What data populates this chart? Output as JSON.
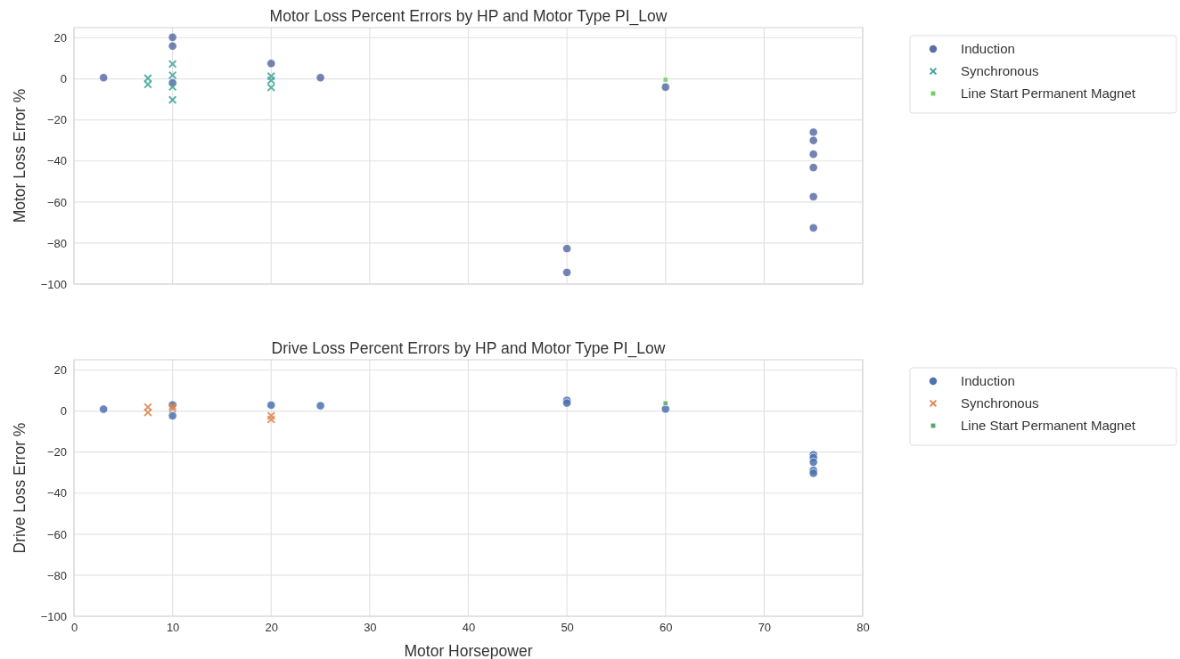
{
  "chart_data": [
    {
      "type": "scatter",
      "title": "Motor Loss Percent Errors by HP and Motor Type PI_Low",
      "ylabel": "Motor Loss Error %",
      "xlim": [
        0,
        80
      ],
      "xticks": [
        0,
        10,
        20,
        30,
        40,
        50,
        60,
        70,
        80
      ],
      "ylim": [
        -100,
        25
      ],
      "yticks": [
        -100,
        -80,
        -60,
        -40,
        -20,
        0,
        20
      ],
      "tick_labels": "y",
      "grid": true,
      "legend": "right",
      "series": [
        {
          "name": "Induction",
          "color": "#5b6ea6",
          "marker": "circle",
          "x": [
            3,
            10,
            10,
            10,
            20,
            25,
            50,
            50,
            60,
            75,
            75,
            75,
            75,
            75,
            75
          ],
          "values": [
            0.6,
            20.3,
            16,
            -1.9,
            7.5,
            0.6,
            -82.7,
            -94.3,
            -4,
            -26,
            -30,
            -36.7,
            -43.2,
            -57.4,
            -72.6
          ]
        },
        {
          "name": "Synchronous",
          "color": "#3fa39b",
          "marker": "cross",
          "x": [
            7.5,
            7.5,
            10,
            10,
            10,
            10,
            20,
            20,
            20
          ],
          "values": [
            0.3,
            -2.7,
            7.3,
            1.8,
            -3.9,
            -10.2,
            1.3,
            -0.7,
            -4.2
          ]
        },
        {
          "name": "Line Start Permanent Magnet",
          "color": "#6fce64",
          "marker": "square",
          "x": [
            60
          ],
          "values": [
            -0.4
          ]
        }
      ]
    },
    {
      "type": "scatter",
      "title": "Drive Loss Percent Errors by HP and Motor Type PI_Low",
      "xlabel": "Motor Horsepower",
      "ylabel": "Drive Loss Error %",
      "xlim": [
        0,
        80
      ],
      "xticks": [
        0,
        10,
        20,
        30,
        40,
        50,
        60,
        70,
        80
      ],
      "ylim": [
        -100,
        25
      ],
      "yticks": [
        -100,
        -80,
        -60,
        -40,
        -20,
        0,
        20
      ],
      "grid": true,
      "legend": "right",
      "series": [
        {
          "name": "Induction",
          "color": "#4c72b0",
          "marker": "circle",
          "x": [
            3,
            10,
            10,
            20,
            25,
            50,
            50,
            60,
            75,
            75,
            75,
            75,
            75
          ],
          "values": [
            0.9,
            3,
            -2.3,
            2.9,
            2.6,
            5.2,
            3.9,
            1,
            -21.3,
            -22.7,
            -24.9,
            -28.9,
            -30.3
          ]
        },
        {
          "name": "Synchronous",
          "color": "#dd8452",
          "marker": "cross",
          "x": [
            7.5,
            7.5,
            10,
            10,
            20,
            20
          ],
          "values": [
            1.9,
            -0.7,
            2.3,
            1.2,
            -2.3,
            -4.1
          ]
        },
        {
          "name": "Line Start Permanent Magnet",
          "color": "#55a868",
          "marker": "square",
          "x": [
            60
          ],
          "values": [
            3.8
          ]
        }
      ]
    }
  ]
}
